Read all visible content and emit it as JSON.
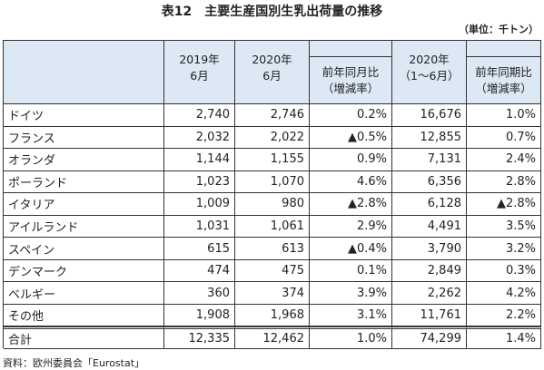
{
  "title": "表12　主要生産国別生乳出荷量の推移",
  "unit": "（単位：千トン）",
  "table": {
    "header": [
      [
        "2019年",
        "6月"
      ],
      [
        "2020年",
        "6月"
      ],
      [
        "前年同月比",
        "（増減率）"
      ],
      [
        "2020年",
        "（1～6月）"
      ],
      [
        "前年同期比",
        "（増減率）"
      ]
    ],
    "rows": [
      [
        "ドイツ",
        "2,740",
        "2,746",
        "0.2%",
        "16,676",
        "1.0%"
      ],
      [
        "フランス",
        "2,032",
        "2,022",
        "▲0.5%",
        "12,855",
        "0.7%"
      ],
      [
        "オランダ",
        "1,144",
        "1,155",
        "0.9%",
        "7,131",
        "2.4%"
      ],
      [
        "ポーランド",
        "1,023",
        "1,070",
        "4.6%",
        "6,356",
        "2.8%"
      ],
      [
        "イタリア",
        "1,009",
        "980",
        "▲2.8%",
        "6,128",
        "▲2.8%"
      ],
      [
        "アイルランド",
        "1,031",
        "1,061",
        "2.9%",
        "4,491",
        "3.5%"
      ],
      [
        "スペイン",
        "615",
        "613",
        "▲0.4%",
        "3,790",
        "3.2%"
      ],
      [
        "デンマーク",
        "474",
        "475",
        "0.1%",
        "2,849",
        "0.3%"
      ],
      [
        "ベルギー",
        "360",
        "374",
        "3.9%",
        "2,262",
        "4.2%"
      ],
      [
        "その他",
        "1,908",
        "1,968",
        "3.1%",
        "11,761",
        "2.2%"
      ]
    ],
    "total": [
      "合計",
      "12,335",
      "12,462",
      "1.0%",
      "74,299",
      "1.4%"
    ]
  },
  "source": "資料：欧州委員会「Eurostat」"
}
